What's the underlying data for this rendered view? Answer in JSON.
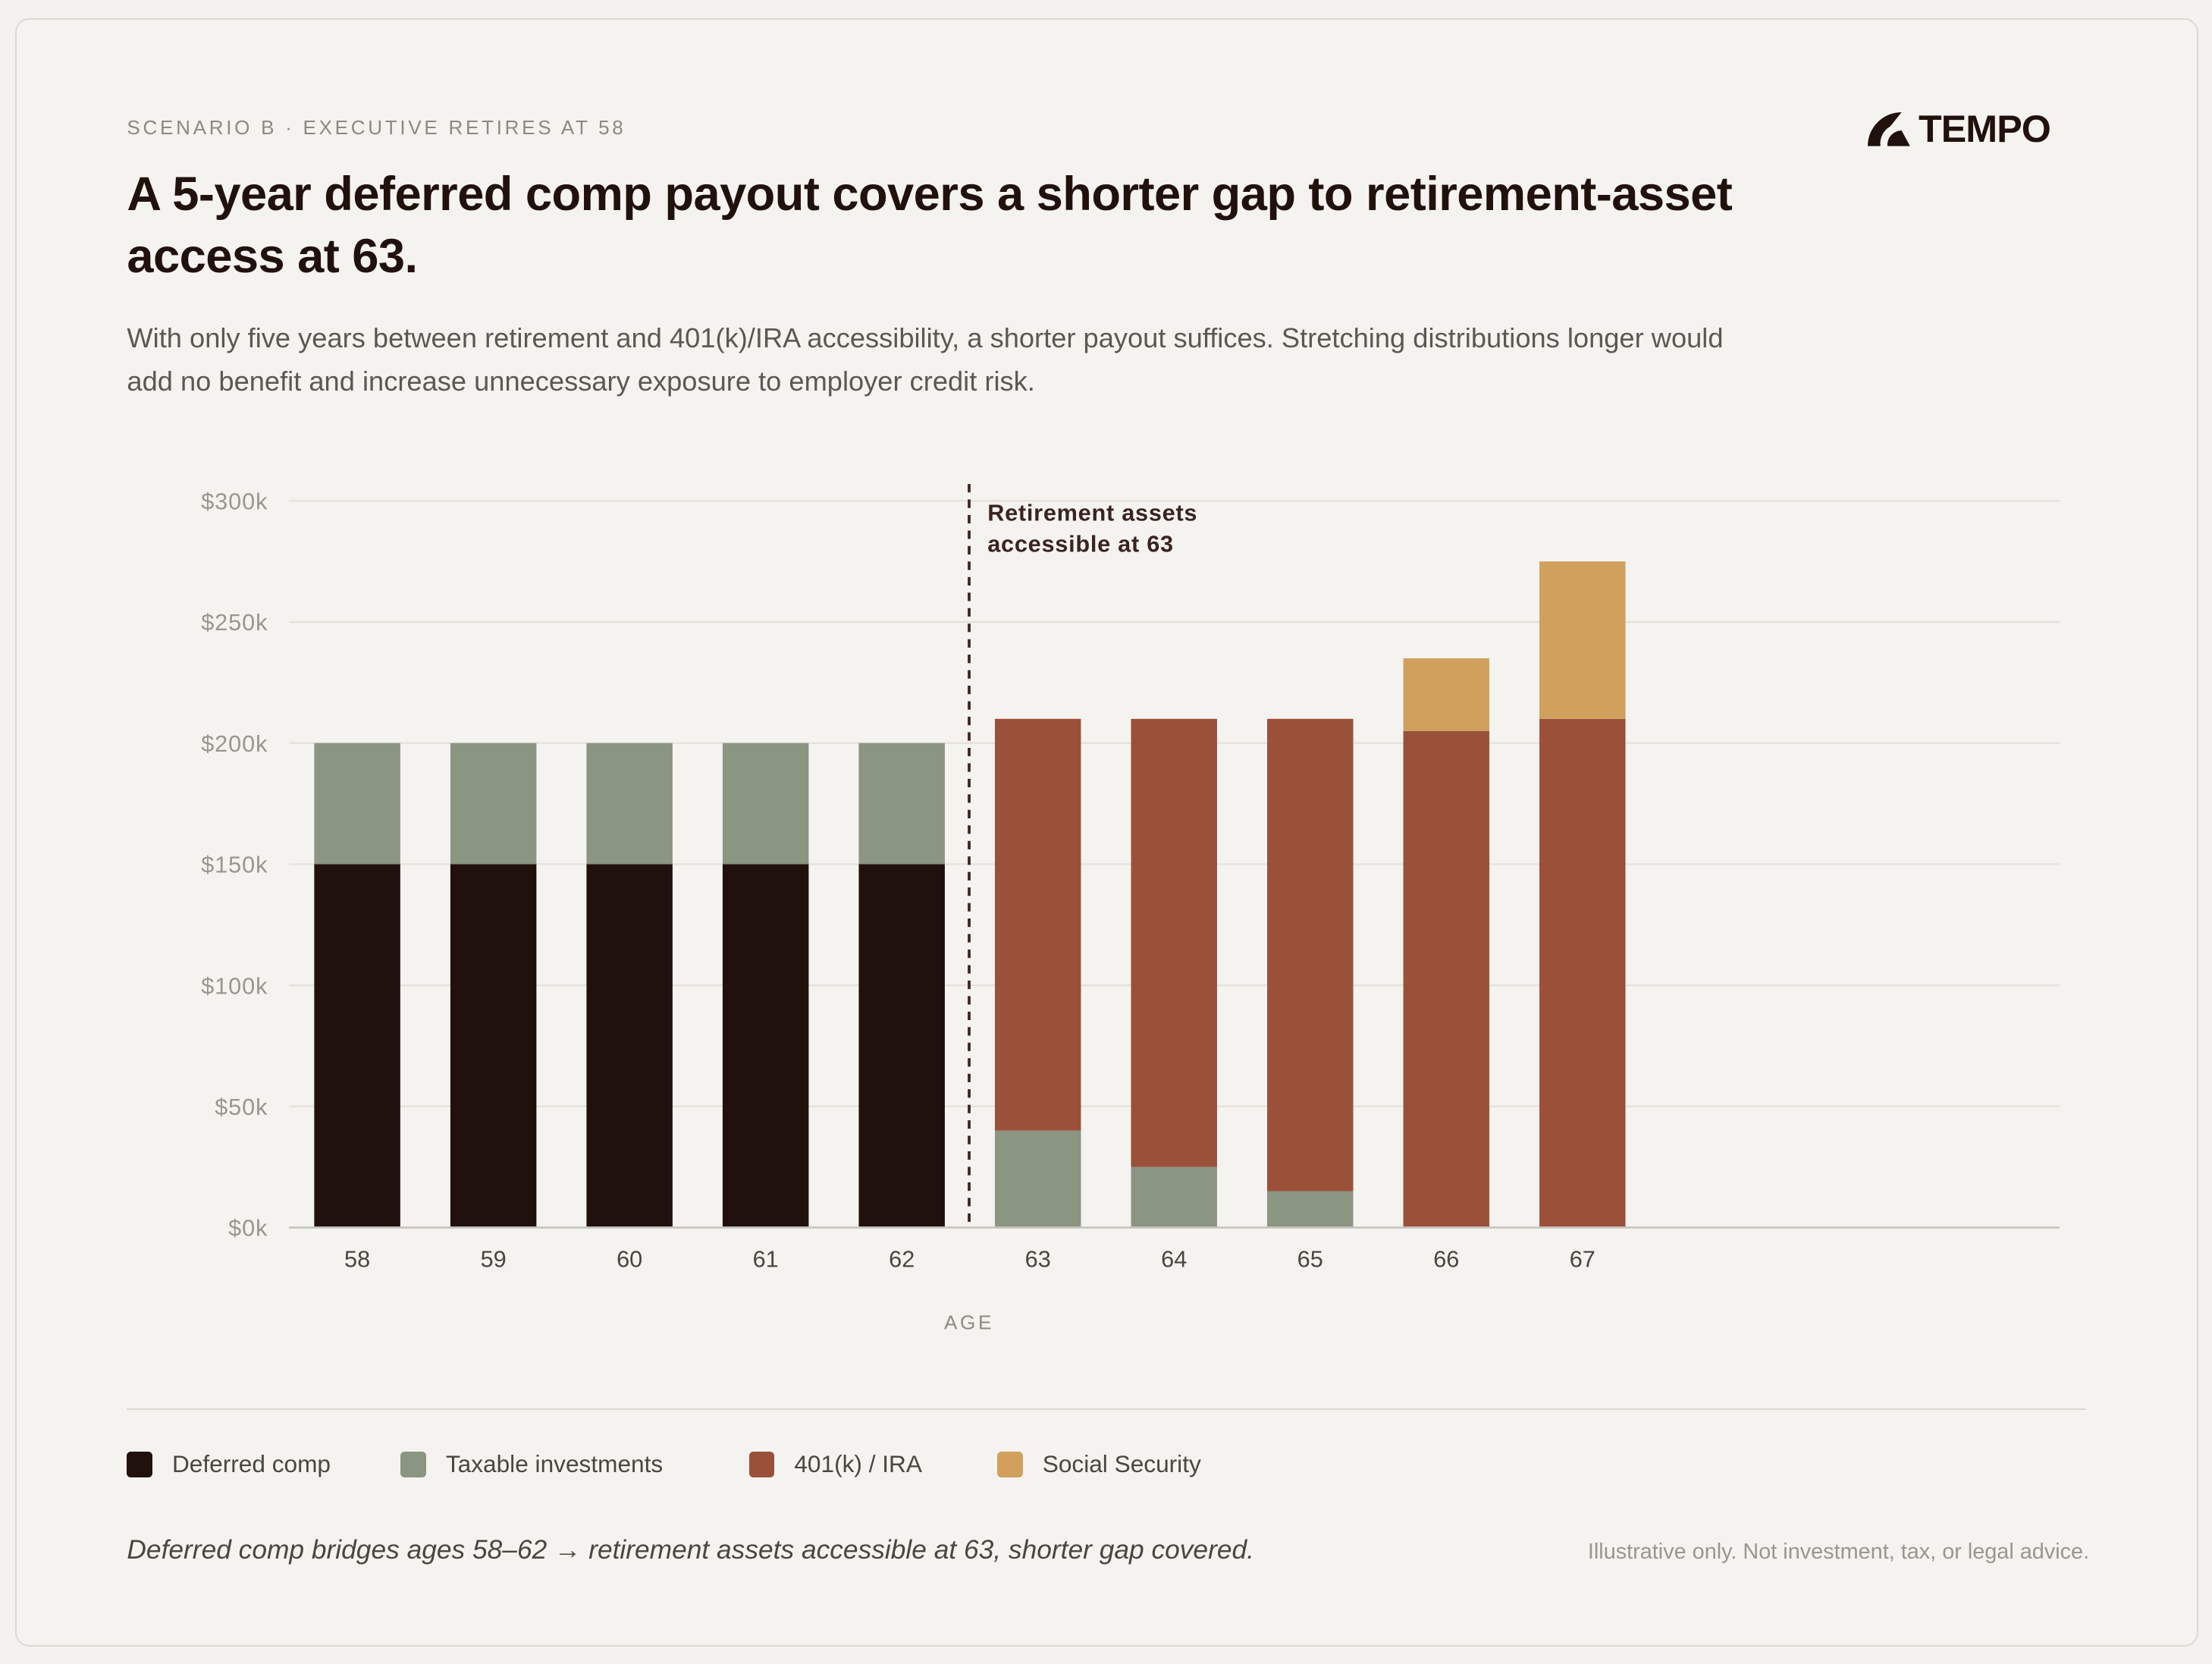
{
  "header": {
    "eyebrow": "SCENARIO B · EXECUTIVE RETIRES AT 58",
    "brand": "TEMPO",
    "title": "A 5-year deferred comp payout covers a shorter gap to retirement-asset access at 63.",
    "subtitle": "With only five years between retirement and 401(k)/IRA accessibility, a shorter payout suffices. Stretching distributions longer would add no benefit and increase unnecessary exposure to employer credit risk."
  },
  "chart_data": {
    "type": "bar",
    "stacked": true,
    "xlabel": "AGE",
    "ylabel": "",
    "categories": [
      "58",
      "59",
      "60",
      "61",
      "62",
      "63",
      "64",
      "65",
      "66",
      "67"
    ],
    "ylim": [
      0,
      300
    ],
    "yticks": [
      "$0k",
      "$50k",
      "$100k",
      "$150k",
      "$200k",
      "$250k",
      "$300k"
    ],
    "ytick_values": [
      0,
      50,
      100,
      150,
      200,
      250,
      300
    ],
    "grid": true,
    "series": [
      {
        "name": "Deferred comp",
        "color": "#21110c",
        "values": [
          150,
          150,
          150,
          150,
          150,
          0,
          0,
          0,
          0,
          0
        ]
      },
      {
        "name": "Taxable investments",
        "color": "#8a9582",
        "values": [
          50,
          50,
          50,
          50,
          50,
          40,
          25,
          15,
          0,
          0
        ]
      },
      {
        "name": "401(k) / IRA",
        "color": "#9b503a",
        "values": [
          0,
          0,
          0,
          0,
          0,
          170,
          185,
          195,
          205,
          210
        ]
      },
      {
        "name": "Social Security",
        "color": "#d0a05c",
        "values": [
          0,
          0,
          0,
          0,
          0,
          0,
          0,
          0,
          30,
          65
        ]
      }
    ],
    "annotation": {
      "text_line1": "Retirement assets",
      "text_line2": "accessible at 63",
      "between": [
        "62",
        "63"
      ]
    },
    "legend_placement": "bottom-left"
  },
  "footer": {
    "note": "Deferred comp bridges ages 58–62 → retirement assets accessible at 63, shorter gap covered.",
    "disclaimer": "Illustrative only. Not investment, tax, or legal advice."
  }
}
